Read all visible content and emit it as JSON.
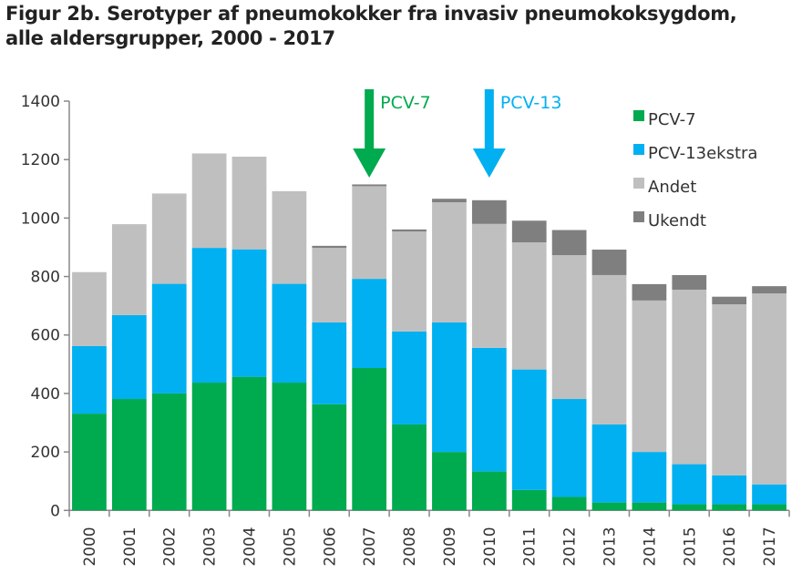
{
  "title_lines": [
    "Figur 2b. Serotyper af pneumokokker fra invasiv pneumokoksygdom,",
    "alle aldersgrupper, 2000 - 2017"
  ],
  "chart_data": {
    "type": "bar",
    "stacked": true,
    "title": "Figur 2b. Serotyper af pneumokokker fra invasiv pneumokoksygdom, alle aldersgrupper, 2000 - 2017",
    "xlabel": "",
    "ylabel": "",
    "ylim": [
      0,
      1400
    ],
    "yticks": [
      0,
      200,
      400,
      600,
      800,
      1000,
      1200,
      1400
    ],
    "grid": false,
    "legend": "top-right",
    "categories": [
      "2000",
      "2001",
      "2002",
      "2003",
      "2004",
      "2005",
      "2006",
      "2007",
      "2008",
      "2009",
      "2010",
      "2011",
      "2012",
      "2013",
      "2014",
      "2015",
      "2016",
      "2017"
    ],
    "series": [
      {
        "name": "PCV-7",
        "color": "#00AA4F",
        "values": [
          331,
          381,
          400,
          437,
          457,
          437,
          363,
          487,
          294,
          200,
          133,
          70,
          46,
          27,
          27,
          21,
          21,
          21
        ]
      },
      {
        "name": "PCV-13ekstra",
        "color": "#00B0F0",
        "values": [
          231,
          287,
          375,
          461,
          436,
          338,
          280,
          305,
          318,
          443,
          423,
          412,
          335,
          267,
          173,
          137,
          99,
          68
        ]
      },
      {
        "name": "Andet",
        "color": "#BFBFBF",
        "values": [
          253,
          311,
          309,
          323,
          317,
          317,
          255,
          317,
          342,
          411,
          424,
          435,
          492,
          511,
          518,
          597,
          585,
          653
        ]
      },
      {
        "name": "Ukendt",
        "color": "#7F7F7F",
        "values": [
          0,
          0,
          0,
          0,
          0,
          0,
          7,
          6,
          7,
          12,
          81,
          74,
          86,
          87,
          56,
          50,
          26,
          25
        ]
      }
    ],
    "annotations": [
      {
        "text": "PCV-7",
        "category": "2007",
        "color": "#00AA4F",
        "icon": "down-arrow"
      },
      {
        "text": "PCV-13",
        "category": "2010",
        "color": "#00B0F0",
        "icon": "down-arrow"
      }
    ]
  }
}
